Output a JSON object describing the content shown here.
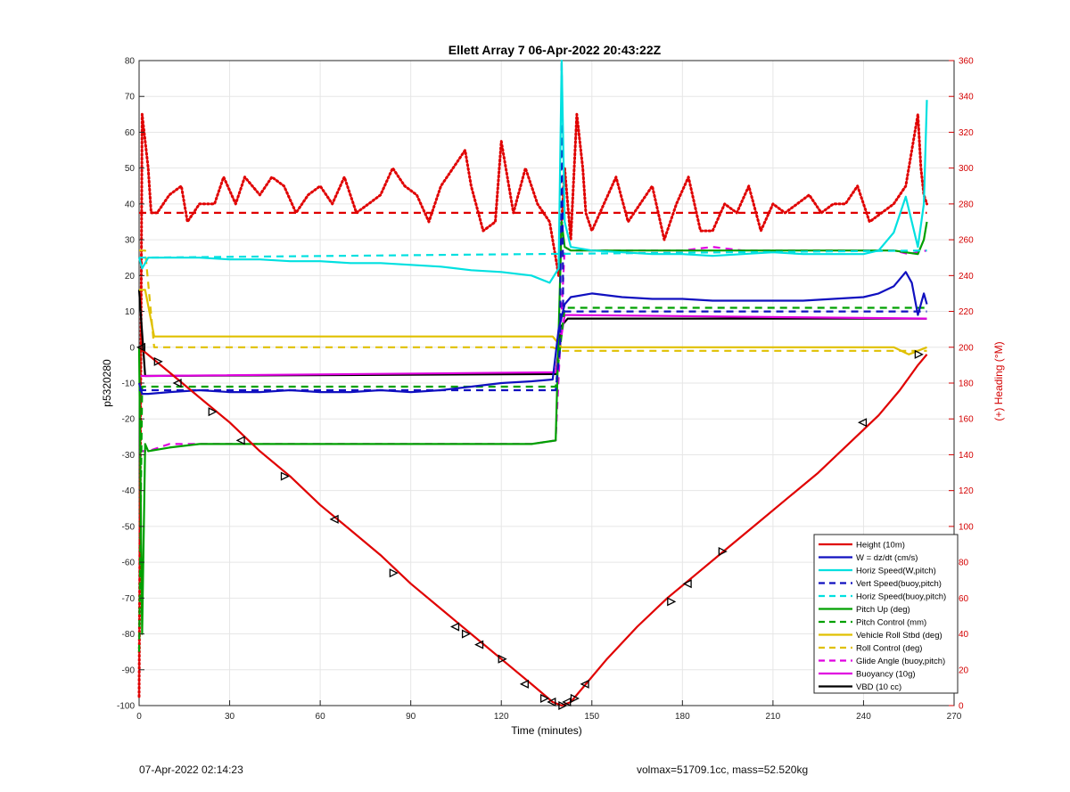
{
  "chart_data": {
    "type": "line",
    "title": "Ellett Array 7 06-Apr-2022 20:43:22Z",
    "xlabel": "Time (minutes)",
    "ylabel": "p5320280",
    "y2label": "(+) Heading (°M)",
    "xlim": [
      0,
      270
    ],
    "ylim": [
      -100,
      80
    ],
    "y2lim": [
      0,
      360
    ],
    "xticks": [
      "0",
      "30",
      "60",
      "90",
      "120",
      "150",
      "180",
      "210",
      "240",
      "270"
    ],
    "yticks": [
      "-100",
      "-90",
      "-80",
      "-70",
      "-60",
      "-50",
      "-40",
      "-30",
      "-20",
      "-10",
      "0",
      "10",
      "20",
      "30",
      "40",
      "50",
      "60",
      "70",
      "80"
    ],
    "y2ticks": [
      "0",
      "20",
      "40",
      "60",
      "80",
      "100",
      "120",
      "140",
      "160",
      "180",
      "200",
      "220",
      "240",
      "260",
      "280",
      "300",
      "320",
      "340",
      "360"
    ],
    "grid": true,
    "legend_position": "bottom-right",
    "series": [
      {
        "name": "Height (10m)",
        "color": "#e00000",
        "style": "solid",
        "x": [
          0,
          10,
          20,
          30,
          40,
          50,
          60,
          70,
          80,
          90,
          100,
          110,
          120,
          130,
          137,
          140,
          143,
          148,
          155,
          165,
          175,
          185,
          195,
          205,
          215,
          225,
          235,
          245,
          252,
          258,
          261
        ],
        "y": [
          0,
          -7,
          -14,
          -21,
          -29,
          -36,
          -44,
          -51,
          -58,
          -66,
          -73,
          -80,
          -87,
          -94,
          -99,
          -100,
          -99,
          -94,
          -87,
          -78,
          -70,
          -63,
          -56,
          -49,
          -42,
          -35,
          -27,
          -19,
          -12,
          -5,
          -2
        ]
      },
      {
        "name": "W = dz/dt (cm/s)",
        "color": "#1010c0",
        "style": "solid",
        "x": [
          0,
          1,
          3,
          10,
          20,
          30,
          40,
          50,
          60,
          70,
          80,
          90,
          100,
          110,
          120,
          130,
          137,
          139,
          141,
          143,
          150,
          160,
          170,
          180,
          190,
          200,
          210,
          220,
          230,
          240,
          245,
          250,
          254,
          256,
          258,
          260,
          261
        ],
        "y": [
          -10,
          -13,
          -13,
          -12.5,
          -12,
          -12.5,
          -12.5,
          -12,
          -12.5,
          -12.5,
          -12,
          -12.5,
          -12,
          -11,
          -10,
          -9.5,
          -9,
          5,
          12,
          14,
          15,
          14,
          13.5,
          13.5,
          13,
          13,
          13,
          13,
          13.5,
          14,
          15,
          17,
          21,
          18,
          9,
          15,
          12
        ]
      },
      {
        "name": "Horiz Speed(W,pitch)",
        "color": "#00e0e0",
        "style": "solid",
        "x": [
          0,
          1,
          3,
          10,
          20,
          30,
          40,
          50,
          60,
          70,
          80,
          90,
          100,
          110,
          120,
          130,
          136,
          139,
          140,
          141,
          143,
          150,
          160,
          170,
          180,
          190,
          200,
          210,
          220,
          230,
          240,
          245,
          250,
          254,
          256,
          258,
          260,
          261
        ],
        "y": [
          25,
          22,
          25,
          25,
          25,
          24.5,
          24.5,
          24,
          24,
          23.5,
          23.5,
          23,
          22.5,
          21.5,
          21,
          20,
          18,
          22,
          80,
          35,
          28,
          27,
          26.5,
          26,
          26,
          25.5,
          26,
          26.5,
          26,
          26,
          26,
          27,
          32,
          42,
          35,
          28,
          40,
          69
        ]
      },
      {
        "name": "Vert Speed(buoy,pitch)",
        "color": "#1010c0",
        "style": "dashed",
        "x": [
          0,
          138,
          139.5,
          140,
          140.5,
          142,
          261
        ],
        "y": [
          -12,
          -12,
          0,
          80,
          10,
          10,
          10
        ]
      },
      {
        "name": "Horiz Speed(buoy,pitch)",
        "color": "#00e0e0",
        "style": "dashed",
        "x": [
          0,
          261
        ],
        "y": [
          25,
          27
        ]
      },
      {
        "name": "Pitch Up (deg)",
        "color": "#00a000",
        "style": "solid",
        "x": [
          0,
          1,
          2,
          3,
          10,
          20,
          30,
          40,
          50,
          60,
          70,
          80,
          90,
          100,
          110,
          120,
          130,
          138,
          140,
          141,
          143,
          150,
          160,
          170,
          180,
          190,
          200,
          210,
          220,
          230,
          240,
          250,
          258,
          260,
          261
        ],
        "y": [
          0,
          -80,
          -27,
          -29,
          -28,
          -27,
          -27,
          -27,
          -27,
          -27,
          -27,
          -27,
          -27,
          -27,
          -27,
          -27,
          -27,
          -26,
          35,
          28,
          27,
          27,
          27,
          27,
          27,
          27,
          27,
          27,
          27,
          27,
          27,
          27,
          26,
          30,
          35
        ]
      },
      {
        "name": "Pitch Control (mm)",
        "color": "#00a000",
        "style": "dashed",
        "x": [
          0,
          1,
          2,
          138,
          141,
          143,
          261
        ],
        "y": [
          -85,
          -11,
          -11,
          -11,
          11,
          11,
          11
        ]
      },
      {
        "name": "Vehicle Roll Stbd (deg)",
        "color": "#e0c000",
        "style": "solid",
        "x": [
          0,
          2,
          5,
          10,
          20,
          30,
          40,
          50,
          60,
          70,
          80,
          90,
          100,
          110,
          120,
          130,
          137,
          140,
          143,
          150,
          160,
          170,
          180,
          190,
          200,
          210,
          220,
          230,
          240,
          250,
          255,
          258,
          261
        ],
        "y": [
          16,
          16,
          3,
          3,
          3,
          3,
          3,
          3,
          3,
          3,
          3,
          3,
          3,
          3,
          3,
          3,
          3,
          0,
          0,
          0,
          0,
          0,
          0,
          0,
          0,
          0,
          0,
          0,
          0,
          0,
          -2,
          -1,
          0
        ]
      },
      {
        "name": "Roll Control (deg)",
        "color": "#e0c000",
        "style": "dashed",
        "x": [
          0,
          2,
          5,
          10,
          20,
          30,
          40,
          50,
          60,
          70,
          80,
          90,
          100,
          110,
          120,
          130,
          137,
          140,
          143,
          150,
          160,
          170,
          180,
          190,
          200,
          210,
          220,
          230,
          240,
          250,
          261
        ],
        "y": [
          27,
          27,
          0,
          0,
          0,
          0,
          0,
          0,
          0,
          0,
          0,
          0,
          0,
          0,
          0,
          0,
          0,
          -1,
          -1,
          -1,
          -1,
          -1,
          -1,
          -1,
          -1,
          -1,
          -1,
          -1,
          -1,
          -1,
          -1
        ]
      },
      {
        "name": "Glide Angle (buoy,pitch)",
        "color": "#e000e0",
        "style": "dashed",
        "x": [
          0,
          3,
          10,
          20,
          30,
          40,
          50,
          60,
          70,
          80,
          90,
          100,
          110,
          120,
          130,
          138,
          141,
          143,
          150,
          160,
          170,
          180,
          190,
          200,
          210,
          220,
          230,
          240,
          250,
          255,
          261
        ],
        "y": [
          -29,
          -29,
          -27,
          -27,
          -27,
          -27,
          -27,
          -27,
          -27,
          -27,
          -27,
          -27,
          -27,
          -27,
          -27,
          -26,
          28,
          27,
          27,
          27,
          27,
          27,
          28,
          27,
          27,
          27,
          27,
          27,
          27,
          26,
          27
        ]
      },
      {
        "name": "Buoyancy (10g)",
        "color": "#e000e0",
        "style": "solid",
        "x": [
          0,
          3,
          138,
          141,
          143,
          261
        ],
        "y": [
          -8,
          -8,
          -7,
          9,
          9,
          8
        ]
      },
      {
        "name": "VBD (10 cc)",
        "color": "#000000",
        "style": "solid",
        "x": [
          0,
          0.5,
          2,
          138,
          140,
          142,
          261
        ],
        "y": [
          16,
          10,
          -8,
          -7.5,
          6,
          8,
          8
        ]
      },
      {
        "name": "Heading",
        "axis": "right",
        "color": "#e00000",
        "style": "dotted",
        "x": [
          0,
          1,
          2,
          3,
          4,
          6,
          10,
          14,
          16,
          20,
          25,
          28,
          32,
          35,
          40,
          44,
          48,
          52,
          56,
          60,
          64,
          68,
          72,
          76,
          80,
          84,
          88,
          92,
          96,
          100,
          104,
          108,
          110,
          114,
          118,
          120,
          124,
          128,
          132,
          136,
          138,
          139,
          141,
          143,
          145,
          147,
          148,
          150,
          154,
          158,
          162,
          166,
          170,
          174,
          178,
          182,
          186,
          190,
          194,
          198,
          202,
          206,
          210,
          214,
          218,
          222,
          226,
          230,
          234,
          238,
          242,
          246,
          250,
          254,
          258,
          259,
          260,
          261
        ],
        "y": [
          5,
          330,
          315,
          300,
          275,
          275,
          285,
          290,
          270,
          280,
          280,
          295,
          280,
          295,
          285,
          295,
          290,
          275,
          285,
          290,
          280,
          295,
          275,
          280,
          285,
          300,
          290,
          285,
          270,
          290,
          300,
          310,
          290,
          265,
          270,
          315,
          275,
          300,
          280,
          270,
          250,
          240,
          300,
          260,
          330,
          300,
          275,
          265,
          280,
          295,
          270,
          280,
          290,
          260,
          280,
          295,
          265,
          265,
          280,
          275,
          290,
          265,
          280,
          275,
          280,
          285,
          275,
          280,
          280,
          290,
          270,
          275,
          280,
          290,
          330,
          300,
          285,
          280
        ]
      },
      {
        "name": "Heading target",
        "axis": "right",
        "color": "#e00000",
        "style": "dashed",
        "x": [
          0,
          261
        ],
        "y": [
          275,
          275
        ]
      }
    ],
    "markers": {
      "type": "triangle",
      "color": "#000000",
      "x": [
        1,
        6,
        13,
        24,
        34,
        48,
        65,
        84,
        105,
        108,
        113,
        120,
        128,
        134,
        137,
        140,
        142,
        144,
        148,
        176,
        182,
        193,
        240,
        258
      ],
      "y": [
        0,
        -4,
        -10,
        -18,
        -26,
        -36,
        -48,
        -63,
        -78,
        -80,
        -83,
        -87,
        -94,
        -98,
        -99,
        -100,
        -99,
        -98,
        -94,
        -71,
        -66,
        -57,
        -21,
        -2
      ]
    }
  },
  "footer": {
    "date": "07-Apr-2022 02:14:23",
    "stats": "volmax=51709.1cc, mass=52.520kg"
  }
}
